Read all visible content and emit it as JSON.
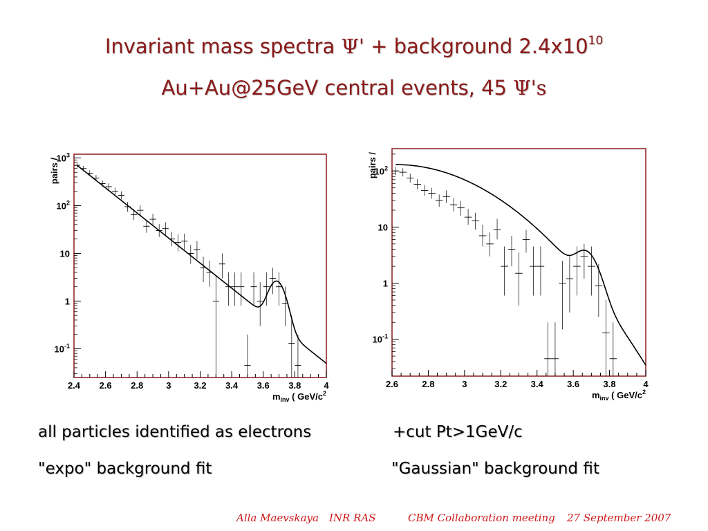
{
  "title": {
    "line1_a": "Invariant mass spectra ",
    "line1_psi": "Ψ'",
    "line1_b": " + background 2.4x10",
    "line1_exp": "10",
    "line2_a": "Au+Au@25GeV central events, 45 ",
    "line2_psi": "Ψ's"
  },
  "captions": {
    "left_1": "all particles identified as electrons",
    "left_2": "\"expo\" background fit",
    "right_1": "+cut Pt>1GeV/c",
    "right_2": "\"Gaussian\" background fit"
  },
  "footer": {
    "author": "Alla Maevskaya",
    "institute": "INR RAS",
    "meeting": "CBM Collaboration meeting",
    "date": "27 September 2007"
  },
  "colors": {
    "title": "#8b1a1a",
    "frame": "#8b1a1a",
    "footer": "#cc1a1a"
  },
  "chart_data": [
    {
      "type": "scatter",
      "subtype": "histogram with error bars and fit curve",
      "ylabel": "pairs /",
      "xlabel_main": "m",
      "xlabel_sub": "inv",
      "xlabel_unit": " ( GeV/c",
      "xlabel_sup": "2",
      "xlim": [
        2.4,
        4.0
      ],
      "ylim": [
        0.025,
        1200
      ],
      "yscale": "log",
      "xticks": [
        2.4,
        2.6,
        2.8,
        3.0,
        3.2,
        3.4,
        3.6,
        3.8,
        4.0
      ],
      "xtick_labels": [
        "2.4",
        "2.6",
        "2.8",
        "3",
        "3.2",
        "3.4",
        "3.6",
        "3.8",
        "4"
      ],
      "yticks": [
        {
          "value": 0.1,
          "base": "10",
          "exp": "-1"
        },
        {
          "value": 1,
          "base": "1",
          "exp": ""
        },
        {
          "value": 10,
          "base": "10",
          "exp": ""
        },
        {
          "value": 100,
          "base": "10",
          "exp": "2"
        },
        {
          "value": 1000,
          "base": "10",
          "exp": "3"
        }
      ],
      "bin_width": 0.04,
      "points": [
        {
          "x": 2.42,
          "y": 700,
          "lo": 620,
          "hi": 790
        },
        {
          "x": 2.46,
          "y": 600,
          "lo": 530,
          "hi": 680
        },
        {
          "x": 2.5,
          "y": 480,
          "lo": 420,
          "hi": 550
        },
        {
          "x": 2.54,
          "y": 380,
          "lo": 330,
          "hi": 440
        },
        {
          "x": 2.58,
          "y": 290,
          "lo": 250,
          "hi": 340
        },
        {
          "x": 2.62,
          "y": 250,
          "lo": 210,
          "hi": 295
        },
        {
          "x": 2.66,
          "y": 200,
          "lo": 165,
          "hi": 240
        },
        {
          "x": 2.7,
          "y": 165,
          "lo": 135,
          "hi": 200
        },
        {
          "x": 2.74,
          "y": 95,
          "lo": 75,
          "hi": 120
        },
        {
          "x": 2.78,
          "y": 65,
          "lo": 50,
          "hi": 85
        },
        {
          "x": 2.82,
          "y": 80,
          "lo": 62,
          "hi": 103
        },
        {
          "x": 2.86,
          "y": 37,
          "lo": 27,
          "hi": 50
        },
        {
          "x": 2.9,
          "y": 52,
          "lo": 40,
          "hi": 68
        },
        {
          "x": 2.94,
          "y": 30,
          "lo": 22,
          "hi": 41
        },
        {
          "x": 2.98,
          "y": 33,
          "lo": 24,
          "hi": 45
        },
        {
          "x": 3.02,
          "y": 20,
          "lo": 14,
          "hi": 28
        },
        {
          "x": 3.06,
          "y": 17,
          "lo": 11,
          "hi": 25
        },
        {
          "x": 3.1,
          "y": 18,
          "lo": 12,
          "hi": 26
        },
        {
          "x": 3.14,
          "y": 10,
          "lo": 6,
          "hi": 15
        },
        {
          "x": 3.18,
          "y": 12,
          "lo": 7.5,
          "hi": 18
        },
        {
          "x": 3.22,
          "y": 5,
          "lo": 2.5,
          "hi": 8.5
        },
        {
          "x": 3.26,
          "y": 4,
          "lo": 2,
          "hi": 7
        },
        {
          "x": 3.3,
          "y": 1,
          "lo": 0.025,
          "hi": 3.5
        },
        {
          "x": 3.34,
          "y": 6,
          "lo": 3,
          "hi": 10
        },
        {
          "x": 3.38,
          "y": 2,
          "lo": 0.8,
          "hi": 4
        },
        {
          "x": 3.42,
          "y": 2,
          "lo": 0.8,
          "hi": 4
        },
        {
          "x": 3.46,
          "y": 2,
          "lo": 0.8,
          "hi": 4
        },
        {
          "x": 3.5,
          "y": 0.045,
          "lo": 0.025,
          "hi": 0.2
        },
        {
          "x": 3.54,
          "y": 2,
          "lo": 0.8,
          "hi": 4
        },
        {
          "x": 3.58,
          "y": 1,
          "lo": 0.3,
          "hi": 2.5
        },
        {
          "x": 3.62,
          "y": 2,
          "lo": 0.8,
          "hi": 4
        },
        {
          "x": 3.66,
          "y": 3,
          "lo": 1.4,
          "hi": 5
        },
        {
          "x": 3.7,
          "y": 2,
          "lo": 0.8,
          "hi": 4
        },
        {
          "x": 3.74,
          "y": 0.9,
          "lo": 0.3,
          "hi": 2
        },
        {
          "x": 3.78,
          "y": 0.13,
          "lo": 0.025,
          "hi": 0.5
        },
        {
          "x": 3.82,
          "y": 0.045,
          "lo": 0.025,
          "hi": 0.2
        }
      ],
      "fit": {
        "background_amp": 700,
        "background_x0": 2.42,
        "background_slope": 6.05,
        "peak_amp": 2.3,
        "peak_mean": 3.685,
        "peak_sigma": 0.045
      }
    },
    {
      "type": "scatter",
      "subtype": "histogram with error bars and fit curve",
      "ylabel": "pairs /",
      "xlabel_main": "m",
      "xlabel_sub": "inv",
      "xlabel_unit": " ( GeV/c",
      "xlabel_sup": "2",
      "xlim": [
        2.6,
        4.0
      ],
      "ylim": [
        0.022,
        250
      ],
      "yscale": "log",
      "xticks": [
        2.6,
        2.8,
        3.0,
        3.2,
        3.4,
        3.6,
        3.8,
        4.0
      ],
      "xtick_labels": [
        "2.6",
        "2.8",
        "3",
        "3.2",
        "3.4",
        "3.6",
        "3.8",
        "4"
      ],
      "yticks": [
        {
          "value": 0.1,
          "base": "10",
          "exp": "-1"
        },
        {
          "value": 1,
          "base": "1",
          "exp": ""
        },
        {
          "value": 10,
          "base": "10",
          "exp": ""
        },
        {
          "value": 100,
          "base": "10",
          "exp": "2"
        }
      ],
      "bin_width": 0.04,
      "points": [
        {
          "x": 2.62,
          "y": 100,
          "lo": 85,
          "hi": 118
        },
        {
          "x": 2.66,
          "y": 95,
          "lo": 80,
          "hi": 112
        },
        {
          "x": 2.7,
          "y": 75,
          "lo": 62,
          "hi": 90
        },
        {
          "x": 2.74,
          "y": 58,
          "lo": 47,
          "hi": 72
        },
        {
          "x": 2.78,
          "y": 45,
          "lo": 36,
          "hi": 56
        },
        {
          "x": 2.82,
          "y": 40,
          "lo": 32,
          "hi": 50
        },
        {
          "x": 2.86,
          "y": 30,
          "lo": 23,
          "hi": 38
        },
        {
          "x": 2.9,
          "y": 35,
          "lo": 27,
          "hi": 45
        },
        {
          "x": 2.94,
          "y": 25,
          "lo": 19,
          "hi": 33
        },
        {
          "x": 2.98,
          "y": 22,
          "lo": 16,
          "hi": 29
        },
        {
          "x": 3.02,
          "y": 15,
          "lo": 11,
          "hi": 21
        },
        {
          "x": 3.06,
          "y": 13,
          "lo": 9,
          "hi": 18
        },
        {
          "x": 3.1,
          "y": 7,
          "lo": 4.5,
          "hi": 11
        },
        {
          "x": 3.14,
          "y": 5,
          "lo": 3,
          "hi": 8
        },
        {
          "x": 3.18,
          "y": 9,
          "lo": 6,
          "hi": 14
        },
        {
          "x": 3.22,
          "y": 2,
          "lo": 0.6,
          "hi": 4.5
        },
        {
          "x": 3.26,
          "y": 4,
          "lo": 2,
          "hi": 7
        },
        {
          "x": 3.3,
          "y": 1.5,
          "lo": 0.4,
          "hi": 3.5
        },
        {
          "x": 3.34,
          "y": 6,
          "lo": 3.5,
          "hi": 9
        },
        {
          "x": 3.38,
          "y": 2,
          "lo": 0.6,
          "hi": 4.5
        },
        {
          "x": 3.42,
          "y": 2,
          "lo": 0.6,
          "hi": 4.5
        },
        {
          "x": 3.46,
          "y": 0.045,
          "lo": 0.022,
          "hi": 0.2
        },
        {
          "x": 3.5,
          "y": 0.045,
          "lo": 0.022,
          "hi": 0.2
        },
        {
          "x": 3.54,
          "y": 1,
          "lo": 0.15,
          "hi": 2.5
        },
        {
          "x": 3.58,
          "y": 1.2,
          "lo": 0.3,
          "hi": 3
        },
        {
          "x": 3.62,
          "y": 2,
          "lo": 0.6,
          "hi": 4.5
        },
        {
          "x": 3.66,
          "y": 3,
          "lo": 1.2,
          "hi": 5
        },
        {
          "x": 3.7,
          "y": 2,
          "lo": 0.6,
          "hi": 4.5
        },
        {
          "x": 3.74,
          "y": 0.9,
          "lo": 0.25,
          "hi": 2.2
        },
        {
          "x": 3.78,
          "y": 0.13,
          "lo": 0.022,
          "hi": 0.5
        },
        {
          "x": 3.82,
          "y": 0.045,
          "lo": 0.022,
          "hi": 0.2
        }
      ],
      "fit": {
        "background_amp": 130,
        "background_x0": 2.62,
        "background_sigma": 0.34,
        "peak_amp": 2.7,
        "peak_mean": 3.67,
        "peak_sigma": 0.055
      }
    }
  ]
}
